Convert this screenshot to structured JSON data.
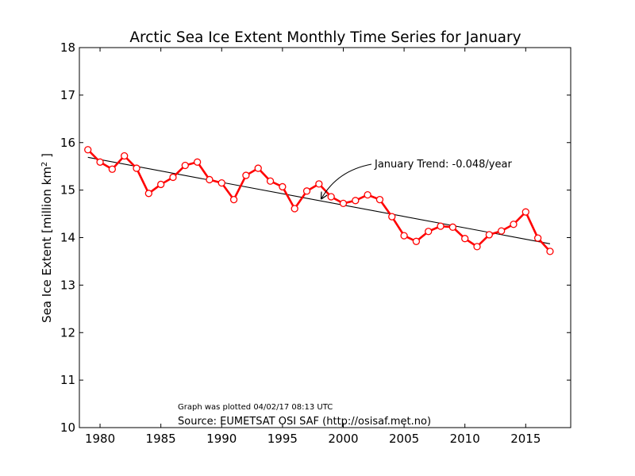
{
  "chart_data": {
    "type": "line",
    "title": "Arctic Sea Ice Extent Monthly Time Series for January",
    "ylabel_main": "Sea Ice Extent [million km",
    "ylabel_sup": "2",
    "ylabel_end": " ]",
    "xlabel": "",
    "xlim": [
      1978.3,
      2018.7
    ],
    "ylim": [
      10,
      18
    ],
    "xticks": [
      1980,
      1985,
      1990,
      1995,
      2000,
      2005,
      2010,
      2015
    ],
    "yticks": [
      10,
      11,
      12,
      13,
      14,
      15,
      16,
      17,
      18
    ],
    "grid": false,
    "series": [
      {
        "color": "#ff0000",
        "x": [
          1979,
          1980,
          1981,
          1982,
          1983,
          1984,
          1985,
          1986,
          1987,
          1988,
          1989,
          1990,
          1991,
          1992,
          1993,
          1994,
          1995,
          1996,
          1997,
          1998,
          1999,
          2000,
          2001,
          2002,
          2003,
          2004,
          2005,
          2006,
          2007,
          2008,
          2009,
          2010,
          2011,
          2012,
          2013,
          2014,
          2015,
          2016,
          2017
        ],
        "y": [
          15.85,
          15.59,
          15.44,
          15.72,
          15.46,
          14.93,
          15.12,
          15.27,
          15.52,
          15.59,
          15.22,
          15.15,
          14.8,
          15.31,
          15.46,
          15.19,
          15.07,
          14.61,
          14.98,
          15.13,
          14.86,
          14.72,
          14.78,
          14.9,
          14.8,
          14.44,
          14.04,
          13.92,
          14.13,
          14.24,
          14.22,
          13.98,
          13.81,
          14.06,
          14.14,
          14.28,
          14.54,
          13.99,
          13.71
        ]
      }
    ],
    "trend": {
      "x": [
        1979,
        2017
      ],
      "y": [
        15.69,
        13.87
      ],
      "color": "#000000"
    },
    "annotation": {
      "text": "January Trend: -0.048/year",
      "arrow_target": [
        1998.2,
        14.82
      ]
    },
    "footnote_small": "Graph was plotted 04/02/17 08:13 UTC",
    "footnote_source": "Source: EUMETSAT OSI SAF (http://osisaf.met.no)"
  }
}
